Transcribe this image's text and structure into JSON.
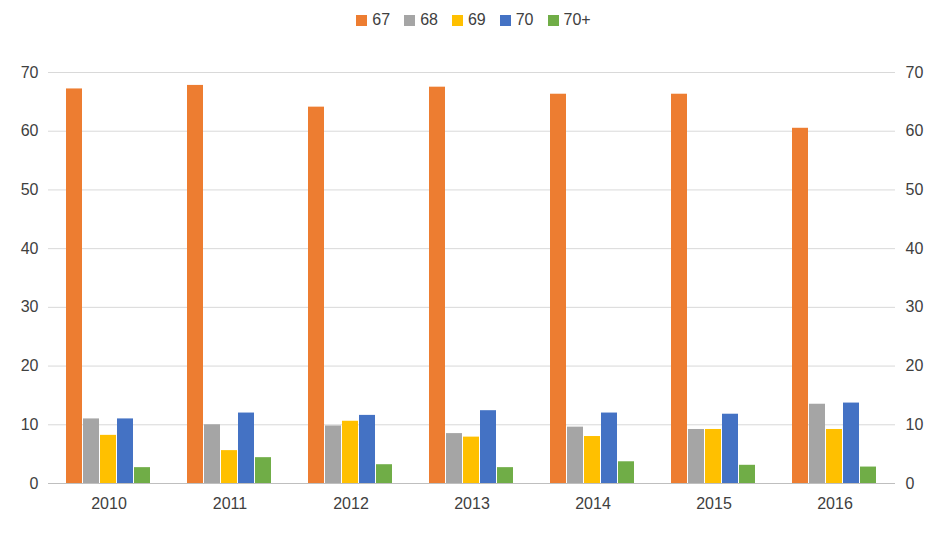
{
  "chart_data": {
    "type": "bar",
    "categories": [
      "2010",
      "2011",
      "2012",
      "2013",
      "2014",
      "2015",
      "2016"
    ],
    "series": [
      {
        "name": "67",
        "color": "#ED7D31",
        "values": [
          67.2,
          67.8,
          64.1,
          67.5,
          66.3,
          66.3,
          60.5
        ]
      },
      {
        "name": "68",
        "color": "#A5A5A5",
        "values": [
          11,
          10,
          9.8,
          8.5,
          9.6,
          9.2,
          13.5
        ]
      },
      {
        "name": "69",
        "color": "#FFC000",
        "values": [
          8.2,
          5.6,
          10.6,
          7.9,
          8,
          9.2,
          9.2
        ]
      },
      {
        "name": "70",
        "color": "#4472C4",
        "values": [
          11,
          12,
          11.6,
          12.4,
          12,
          11.8,
          13.7
        ]
      },
      {
        "name": "70+",
        "color": "#70AD47",
        "values": [
          2.7,
          4.4,
          3.2,
          2.7,
          3.7,
          3.1,
          2.8
        ]
      }
    ],
    "ylim": [
      0,
      70
    ],
    "yticks": [
      0,
      10,
      20,
      30,
      40,
      50,
      60,
      70
    ],
    "y2lim": [
      0,
      70
    ],
    "y2ticks": [
      0,
      10,
      20,
      30,
      40,
      50,
      60,
      70
    ],
    "grid": true,
    "legend": "top"
  }
}
